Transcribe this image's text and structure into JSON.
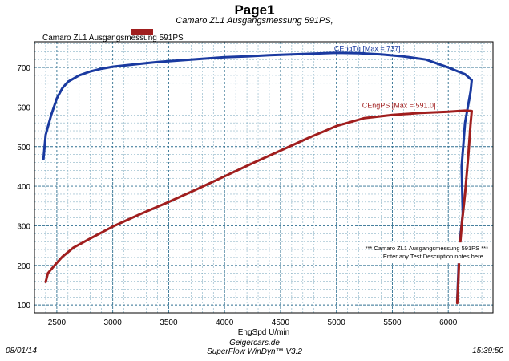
{
  "page": {
    "title": "Page1",
    "subtitle": "Camaro ZL1 Ausgangsmessung 591PS,",
    "legend_label": "Camaro ZL1 Ausgangsmessung 591PS",
    "date": "08/01/14",
    "time": "15:39:50",
    "footer_site": "Geigercars.de",
    "footer_software": "SuperFlow WinDyn™ V3.2"
  },
  "chart_data": {
    "type": "line",
    "xlabel": "EngSpd U/min",
    "ylabel": "",
    "xlim": [
      2300,
      6400
    ],
    "ylim": [
      80,
      765
    ],
    "x_ticks": [
      2500,
      3000,
      3500,
      4000,
      4500,
      5000,
      5500,
      6000
    ],
    "y_ticks": [
      100,
      200,
      300,
      400,
      500,
      600,
      700
    ],
    "grid": true,
    "legend_placement": "top-left",
    "series": [
      {
        "name": "CEngTq",
        "label": "CEngTq [Max = 737]",
        "color": "#1a3aa0",
        "x": [
          2380,
          2400,
          2450,
          2500,
          2550,
          2600,
          2700,
          2800,
          2900,
          3000,
          3200,
          3400,
          3600,
          3800,
          4000,
          4200,
          4400,
          4600,
          4800,
          5000,
          5200,
          5400,
          5600,
          5800,
          6000,
          6150,
          6210,
          6200,
          6150,
          6120,
          6130,
          6100,
          6090,
          6080
        ],
        "y": [
          468,
          530,
          580,
          622,
          648,
          664,
          680,
          690,
          697,
          702,
          708,
          714,
          718,
          722,
          726,
          728,
          731,
          733,
          735,
          737,
          736,
          733,
          728,
          720,
          700,
          683,
          668,
          640,
          560,
          450,
          330,
          250,
          180,
          110
        ]
      },
      {
        "name": "CEngPS",
        "label": "CEngPS [Max = 591.0]",
        "color": "#a01e1e",
        "x": [
          2400,
          2420,
          2480,
          2550,
          2650,
          2800,
          3000,
          3250,
          3500,
          3750,
          4000,
          4250,
          4500,
          4750,
          5000,
          5250,
          5500,
          5750,
          6000,
          6150,
          6210,
          6200,
          6180,
          6150,
          6120,
          6100,
          6090,
          6080
        ],
        "y": [
          158,
          180,
          200,
          222,
          245,
          268,
          298,
          330,
          360,
          392,
          425,
          458,
          490,
          522,
          552,
          572,
          580,
          585,
          588,
          591,
          590,
          560,
          480,
          380,
          300,
          230,
          160,
          105
        ]
      }
    ],
    "annotations": [
      "*** Camaro ZL1 Ausgangsmessung 591PS ***",
      "Enter any Test Description notes here..."
    ]
  }
}
